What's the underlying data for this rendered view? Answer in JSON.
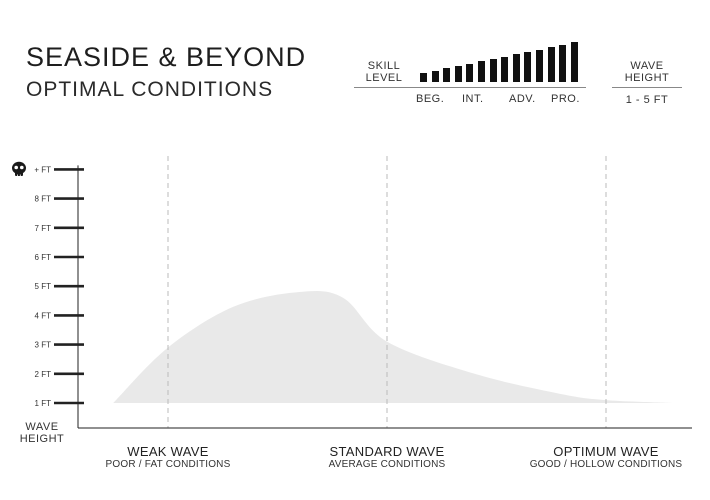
{
  "header": {
    "title_line1": "SEASIDE & BEYOND",
    "title_line2": "OPTIMAL CONDITIONS"
  },
  "skill_scale": {
    "label_line1": "SKILL",
    "label_line2": "LEVEL",
    "levels": [
      "BEG.",
      "INT.",
      "ADV.",
      "PRO."
    ],
    "bar_count": 14
  },
  "wave_height_legend": {
    "label_line1": "WAVE",
    "label_line2": "HEIGHT",
    "range": "1 - 5 FT"
  },
  "chart_data": {
    "type": "area",
    "xlabel": "",
    "ylabel": "WAVE HEIGHT",
    "ylabel_line1": "WAVE",
    "ylabel_line2": "HEIGHT",
    "y_ticks": [
      "1 FT",
      "2 FT",
      "3 FT",
      "4 FT",
      "5 FT",
      "6 FT",
      "7 FT",
      "8 FT",
      "+ FT"
    ],
    "max_tick_icon": "skull-icon",
    "ylim": [
      1,
      9
    ],
    "grid": false,
    "categories": [
      {
        "name": "WEAK WAVE",
        "description": "POOR / FAT CONDITIONS"
      },
      {
        "name": "STANDARD WAVE",
        "description": "AVERAGE CONDITIONS"
      },
      {
        "name": "OPTIMUM WAVE",
        "description": "GOOD / HOLLOW CONDITIONS"
      }
    ],
    "xlim": [
      0,
      2.4
    ],
    "series": [
      {
        "x": [
          -0.25,
          0,
          0.3,
          0.6,
          0.8,
          1.0,
          1.4,
          1.8,
          2.0,
          2.3
        ],
        "y": [
          1.0,
          2.9,
          4.3,
          4.8,
          4.6,
          3.1,
          2.0,
          1.3,
          1.1,
          1.0
        ]
      }
    ],
    "colors": {
      "area": "#e9e9e9",
      "axis": "#222222",
      "divider": "#bbbbbb"
    }
  }
}
